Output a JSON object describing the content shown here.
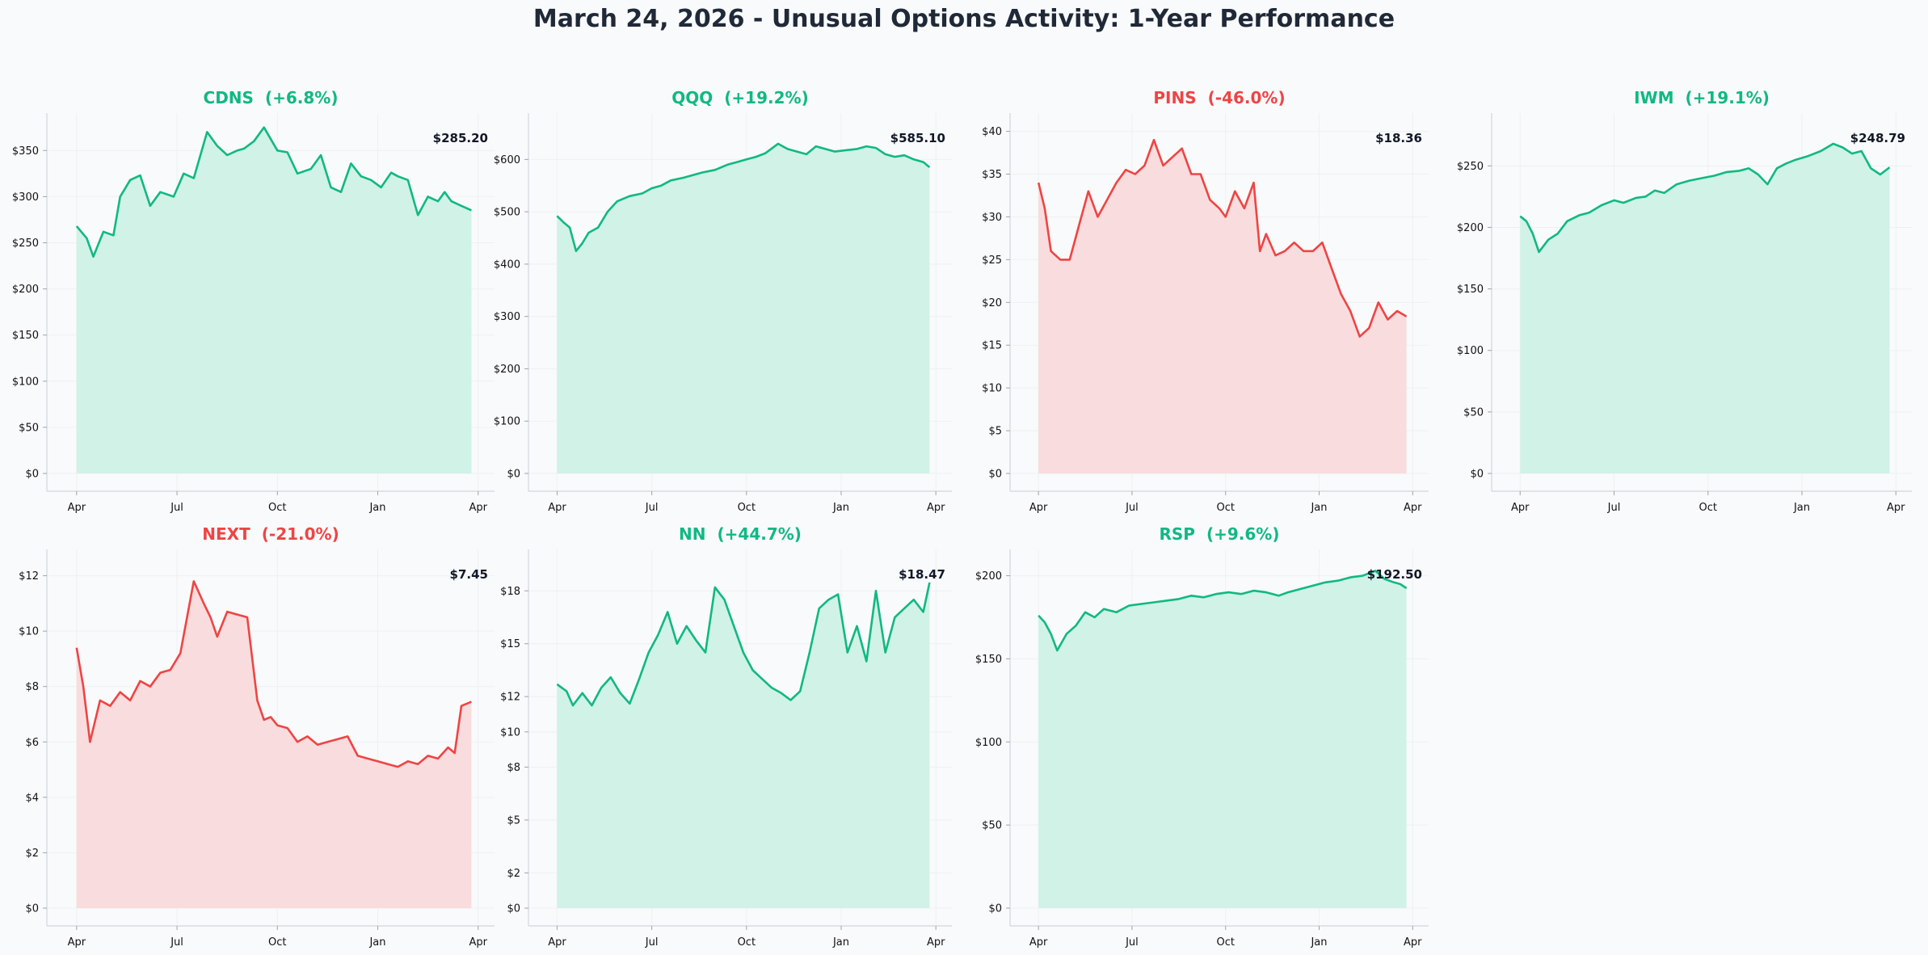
{
  "title": "March 24, 2026 - Unusual Options Activity: 1-Year Performance",
  "colors": {
    "up": "#10b981",
    "down": "#ef4444",
    "up_fill": "#d1f2e6",
    "down_fill": "#f9dcdd",
    "axis": "#d1d5db",
    "grid": "#eef0f3"
  },
  "x_ticks": [
    "Apr",
    "Jul",
    "Oct",
    "Jan",
    "Apr"
  ],
  "chart_data": [
    {
      "type": "area",
      "ticker": "CDNS",
      "change_label": "(+6.8%)",
      "direction": "up",
      "last_price_label": "$285.20",
      "yticks": [
        "$0",
        "$50",
        "$100",
        "$150",
        "$200",
        "$250",
        "$300",
        "$350"
      ],
      "ylim": [
        0,
        380
      ],
      "xlim": [
        -0.6,
        12.2
      ],
      "x": [
        0,
        0.3,
        0.5,
        0.8,
        1.1,
        1.3,
        1.6,
        1.9,
        2.2,
        2.5,
        2.9,
        3.2,
        3.5,
        3.9,
        4.2,
        4.5,
        4.8,
        5.0,
        5.3,
        5.6,
        6.0,
        6.3,
        6.6,
        7.0,
        7.3,
        7.6,
        7.9,
        8.2,
        8.5,
        8.8,
        9.1,
        9.4,
        9.6,
        9.9,
        10.2,
        10.5,
        10.8,
        11.0,
        11.2,
        11.5,
        11.8
      ],
      "values": [
        268,
        255,
        235,
        262,
        258,
        300,
        318,
        323,
        290,
        305,
        300,
        325,
        320,
        370,
        355,
        345,
        350,
        352,
        360,
        375,
        350,
        348,
        325,
        330,
        345,
        310,
        305,
        336,
        322,
        318,
        310,
        326,
        322,
        318,
        280,
        300,
        295,
        305,
        295,
        290,
        285.2
      ]
    },
    {
      "type": "area",
      "ticker": "QQQ",
      "change_label": "(+19.2%)",
      "direction": "up",
      "last_price_label": "$585.10",
      "yticks": [
        "$0",
        "$100",
        "$200",
        "$300",
        "$400",
        "$500",
        "$600"
      ],
      "ylim": [
        0,
        670
      ],
      "xlim": [
        -0.6,
        12.2
      ],
      "x": [
        0,
        0.2,
        0.4,
        0.6,
        0.8,
        1.0,
        1.3,
        1.6,
        1.9,
        2.3,
        2.7,
        3.0,
        3.3,
        3.6,
        4.0,
        4.3,
        4.6,
        5.0,
        5.4,
        5.7,
        6.0,
        6.3,
        6.6,
        7.0,
        7.3,
        7.6,
        7.9,
        8.2,
        8.5,
        8.8,
        9.2,
        9.5,
        9.8,
        10.1,
        10.4,
        10.7,
        11.0,
        11.3,
        11.6,
        11.8
      ],
      "values": [
        492,
        480,
        470,
        425,
        440,
        460,
        470,
        500,
        520,
        530,
        535,
        545,
        550,
        560,
        565,
        570,
        575,
        580,
        590,
        595,
        600,
        605,
        612,
        630,
        620,
        615,
        610,
        625,
        620,
        615,
        618,
        620,
        625,
        622,
        610,
        605,
        608,
        600,
        595,
        585.1
      ]
    },
    {
      "type": "area",
      "ticker": "PINS",
      "change_label": "(-46.0%)",
      "direction": "down",
      "last_price_label": "$18.36",
      "yticks": [
        "$0",
        "$5",
        "$10",
        "$15",
        "$20",
        "$25",
        "$30",
        "$35",
        "$40"
      ],
      "ylim": [
        0,
        41
      ],
      "xlim": [
        -0.6,
        12.2
      ],
      "x": [
        0,
        0.2,
        0.4,
        0.7,
        1.0,
        1.3,
        1.6,
        1.9,
        2.2,
        2.5,
        2.8,
        3.1,
        3.4,
        3.7,
        4.0,
        4.3,
        4.6,
        4.9,
        5.2,
        5.5,
        5.8,
        6.0,
        6.3,
        6.6,
        6.9,
        7.1,
        7.3,
        7.6,
        7.9,
        8.2,
        8.5,
        8.8,
        9.1,
        9.4,
        9.7,
        10.0,
        10.3,
        10.6,
        10.9,
        11.2,
        11.5,
        11.8
      ],
      "values": [
        34,
        31,
        26,
        25,
        25,
        29,
        33,
        30,
        32,
        34,
        35.5,
        35,
        36,
        39,
        36,
        37,
        38,
        35,
        35,
        32,
        31,
        30,
        33,
        31,
        34,
        26,
        28,
        25.5,
        26,
        27,
        26,
        26,
        27,
        24,
        21,
        19,
        16,
        17,
        20,
        18,
        19,
        18.36
      ]
    },
    {
      "type": "area",
      "ticker": "IWM",
      "change_label": "(+19.1%)",
      "direction": "up",
      "last_price_label": "$248.79",
      "yticks": [
        "$0",
        "$50",
        "$100",
        "$150",
        "$200",
        "$250"
      ],
      "ylim": [
        0,
        285
      ],
      "xlim": [
        -0.6,
        12.2
      ],
      "x": [
        0,
        0.2,
        0.4,
        0.6,
        0.9,
        1.2,
        1.5,
        1.9,
        2.2,
        2.6,
        3.0,
        3.3,
        3.7,
        4.0,
        4.3,
        4.6,
        5.0,
        5.4,
        5.8,
        6.2,
        6.6,
        7.0,
        7.3,
        7.6,
        7.9,
        8.2,
        8.5,
        8.8,
        9.2,
        9.6,
        10.0,
        10.3,
        10.6,
        10.9,
        11.2,
        11.5,
        11.8
      ],
      "values": [
        209,
        205,
        195,
        180,
        190,
        195,
        205,
        210,
        212,
        218,
        222,
        220,
        224,
        225,
        230,
        228,
        235,
        238,
        240,
        242,
        245,
        246,
        248,
        243,
        235,
        248,
        252,
        255,
        258,
        262,
        268,
        265,
        260,
        262,
        248,
        243,
        248.79
      ]
    },
    {
      "type": "area",
      "ticker": "NEXT",
      "change_label": "(-21.0%)",
      "direction": "down",
      "last_price_label": "$7.45",
      "yticks": [
        "$0",
        "$2",
        "$4",
        "$6",
        "$8",
        "$10",
        "$12"
      ],
      "ylim": [
        0,
        12.6
      ],
      "xlim": [
        -0.6,
        12.2
      ],
      "x": [
        0,
        0.2,
        0.4,
        0.7,
        1.0,
        1.3,
        1.6,
        1.9,
        2.2,
        2.5,
        2.8,
        3.1,
        3.3,
        3.5,
        3.8,
        4.0,
        4.2,
        4.5,
        4.8,
        5.1,
        5.4,
        5.6,
        5.8,
        6.0,
        6.3,
        6.6,
        6.9,
        7.2,
        7.5,
        7.8,
        8.1,
        8.4,
        8.7,
        9.0,
        9.3,
        9.6,
        9.9,
        10.2,
        10.5,
        10.8,
        11.1,
        11.3,
        11.5,
        11.8
      ],
      "values": [
        9.4,
        8,
        6,
        7.5,
        7.3,
        7.8,
        7.5,
        8.2,
        8.0,
        8.5,
        8.6,
        9.2,
        10.5,
        11.8,
        11.0,
        10.5,
        9.8,
        10.7,
        10.6,
        10.5,
        7.5,
        6.8,
        6.9,
        6.6,
        6.5,
        6.0,
        6.2,
        5.9,
        6.0,
        6.1,
        6.2,
        5.5,
        5.4,
        5.3,
        5.2,
        5.1,
        5.3,
        5.2,
        5.5,
        5.4,
        5.8,
        5.6,
        7.3,
        7.45
      ]
    },
    {
      "type": "area",
      "ticker": "NN",
      "change_label": "(+44.7%)",
      "direction": "up",
      "last_price_label": "$18.47",
      "yticks": [
        "$0",
        "$2",
        "$5",
        "$8",
        "$10",
        "$12",
        "$15",
        "$18"
      ],
      "ylim": [
        0,
        19.8
      ],
      "xlim": [
        -0.6,
        12.2
      ],
      "x": [
        0,
        0.3,
        0.5,
        0.8,
        1.1,
        1.4,
        1.7,
        2.0,
        2.3,
        2.6,
        2.9,
        3.2,
        3.5,
        3.8,
        4.1,
        4.4,
        4.7,
        5.0,
        5.3,
        5.6,
        5.9,
        6.2,
        6.5,
        6.8,
        7.1,
        7.4,
        7.7,
        8.0,
        8.3,
        8.6,
        8.9,
        9.2,
        9.5,
        9.8,
        10.1,
        10.4,
        10.7,
        11.0,
        11.3,
        11.6,
        11.8
      ],
      "values": [
        12.7,
        12.3,
        11.5,
        12.2,
        11.5,
        12.5,
        13.1,
        12.2,
        11.6,
        13.0,
        14.5,
        15.5,
        16.8,
        15.0,
        16.0,
        15.2,
        14.5,
        18.2,
        17.5,
        16.0,
        14.5,
        13.5,
        13.0,
        12.5,
        12.2,
        11.8,
        12.3,
        14.5,
        17.0,
        17.5,
        17.8,
        14.5,
        16.0,
        14.0,
        18.0,
        14.5,
        16.5,
        17.0,
        17.5,
        16.8,
        18.47
      ]
    },
    {
      "type": "area",
      "ticker": "RSP",
      "change_label": "(+9.6%)",
      "direction": "up",
      "last_price_label": "$192.50",
      "yticks": [
        "$0",
        "$50",
        "$100",
        "$150",
        "$200"
      ],
      "ylim": [
        0,
        210
      ],
      "xlim": [
        -0.6,
        12.2
      ],
      "x": [
        0,
        0.2,
        0.4,
        0.6,
        0.9,
        1.2,
        1.5,
        1.8,
        2.1,
        2.5,
        2.9,
        3.3,
        3.7,
        4.1,
        4.5,
        4.9,
        5.3,
        5.7,
        6.1,
        6.5,
        6.9,
        7.3,
        7.7,
        8.0,
        8.4,
        8.8,
        9.2,
        9.6,
        10.0,
        10.4,
        10.8,
        11.1,
        11.4,
        11.6,
        11.8
      ],
      "values": [
        176,
        172,
        165,
        155,
        165,
        170,
        178,
        175,
        180,
        178,
        182,
        183,
        184,
        185,
        186,
        188,
        187,
        189,
        190,
        189,
        191,
        190,
        188,
        190,
        192,
        194,
        196,
        197,
        199,
        200,
        203,
        198,
        196,
        195,
        192.5
      ]
    }
  ]
}
